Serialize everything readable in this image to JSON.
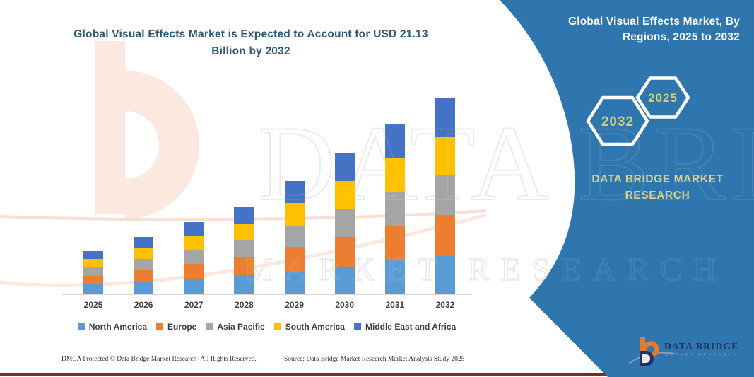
{
  "colors": {
    "panel_blue": "#2e76ad",
    "title_text": "#2f5878",
    "hexagon_year_text": "#cbd07b",
    "panel_brand_text": "#d6d189",
    "axis_line": "#d9d9d9",
    "label_text": "#3f3f3f",
    "bottom_rule": "#7c2b25",
    "watermark_peach": "#fbe8de",
    "logo_orange": "#e8782a",
    "logo_navy": "#22335f",
    "logo_swoosh_gray": "#93a5b9"
  },
  "chart_title": "Global Visual Effects Market is Expected to Account for USD 21.13 Billion by 2032",
  "chart_data": {
    "type": "bar",
    "subtype": "stacked-column",
    "title": "Global Visual Effects Market is Expected to Account for USD 21.13 Billion by 2032",
    "unit": "USD Billion",
    "categories": [
      "2025",
      "2026",
      "2027",
      "2028",
      "2029",
      "2030",
      "2031",
      "2032"
    ],
    "series": [
      {
        "name": "North America",
        "color": "#5B9BD5",
        "values": [
          0.98,
          1.3,
          1.62,
          1.95,
          2.4,
          2.9,
          3.6,
          4.05
        ]
      },
      {
        "name": "Europe",
        "color": "#ED7D31",
        "values": [
          0.95,
          1.25,
          1.58,
          1.92,
          2.65,
          3.2,
          3.7,
          4.43
        ]
      },
      {
        "name": "Asia Pacific",
        "color": "#A5A5A5",
        "values": [
          0.92,
          1.22,
          1.54,
          1.86,
          2.3,
          3.05,
          3.65,
          4.27
        ]
      },
      {
        "name": "South America",
        "color": "#FFC000",
        "values": [
          0.88,
          1.18,
          1.5,
          1.82,
          2.45,
          2.95,
          3.62,
          4.2
        ]
      },
      {
        "name": "Middle East and Africa",
        "color": "#4472C4",
        "values": [
          0.85,
          1.15,
          1.46,
          1.75,
          2.3,
          3.1,
          3.63,
          4.18
        ]
      }
    ],
    "totals_by_year": [
      4.58,
      6.1,
      7.7,
      9.3,
      12.1,
      15.2,
      18.2,
      21.13
    ],
    "legend_position": "bottom",
    "grid": false,
    "y_axis_visible": false
  },
  "panel": {
    "title": "Global Visual Effects Market, By Regions, 2025 to 2032",
    "hexagon_back_year": "2032",
    "hexagon_front_year": "2025",
    "brand": "DATA BRIDGE MARKET RESEARCH",
    "logo": {
      "name": "DATA BRIDGE",
      "tagline": "MARKET RESEARCH"
    }
  },
  "watermark": {
    "big_text": "DATA BRIDGE",
    "sub_text": "MARKET RESEARCH"
  },
  "footer": {
    "left": "DMCA Protected © Data Bridge Market Research-  All Rights Reserved.",
    "right": "Source: Data Bridge Market Research  Market Analysis Study 2025"
  }
}
